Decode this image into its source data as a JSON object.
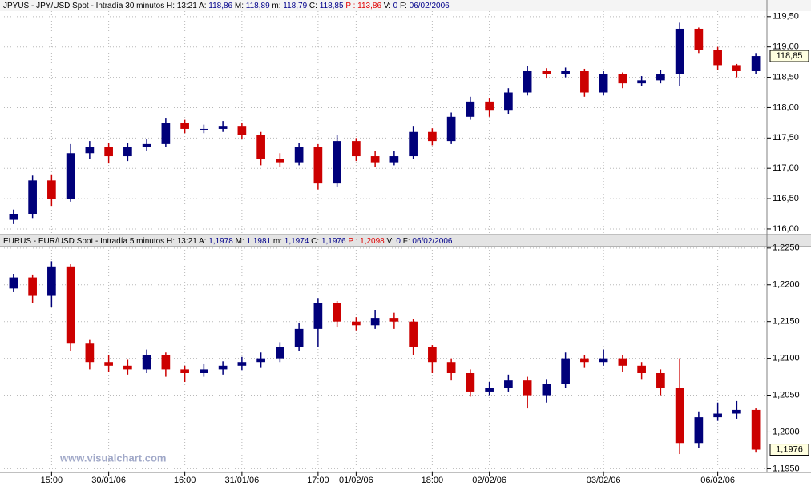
{
  "watermark": "www.visualchart.com",
  "chart_data": [
    {
      "type": "candlestick",
      "header": {
        "text": "JPYUS - JPY/USD Spot - Intradía 30 minutos",
        "fields": [
          {
            "label": "H:",
            "value": "13:21"
          },
          {
            "label": "A:",
            "value": "118,86"
          },
          {
            "label": "M:",
            "value": "118,89"
          },
          {
            "label": "m:",
            "value": "118,79"
          },
          {
            "label": "C:",
            "value": "118,85"
          },
          {
            "label": "P :",
            "value": "113,86",
            "color": "#e00000"
          },
          {
            "label": "V:",
            "value": "0"
          },
          {
            "label": "F:",
            "value": "06/02/2006"
          }
        ]
      },
      "up_color": "#00007a",
      "down_color": "#cc0000",
      "ylim": [
        115.92,
        119.59
      ],
      "yticks": [
        {
          "value": 116,
          "label": "116,00"
        },
        {
          "value": 116.5,
          "label": "116,50"
        },
        {
          "value": 117,
          "label": "117,00"
        },
        {
          "value": 117.5,
          "label": "117,50"
        },
        {
          "value": 118,
          "label": "118,00"
        },
        {
          "value": 118.5,
          "label": "118,50"
        },
        {
          "value": 119,
          "label": "119,00"
        },
        {
          "value": 119.5,
          "label": "119,50"
        }
      ],
      "grid": true,
      "last": {
        "value": 118.85,
        "label": "118,85"
      },
      "open": [
        116.15,
        116.25,
        116.8,
        116.5,
        117.25,
        117.35,
        117.2,
        117.35,
        117.4,
        117.75,
        117.65,
        117.65,
        117.7,
        117.55,
        117.15,
        117.1,
        117.35,
        116.75,
        117.45,
        117.2,
        117.1,
        117.2,
        117.6,
        117.45,
        117.85,
        118.1,
        117.95,
        118.25,
        118.6,
        118.55,
        118.6,
        118.25,
        118.55,
        118.4,
        118.45,
        118.55,
        119.3,
        118.95,
        118.7,
        118.6
      ],
      "high": [
        116.32,
        116.88,
        116.9,
        117.4,
        117.45,
        117.42,
        117.42,
        117.48,
        117.82,
        117.8,
        117.72,
        117.78,
        117.75,
        117.6,
        117.25,
        117.42,
        117.4,
        117.55,
        117.5,
        117.28,
        117.28,
        117.7,
        117.66,
        117.92,
        118.18,
        118.15,
        118.32,
        118.68,
        118.65,
        118.66,
        118.64,
        118.6,
        118.58,
        118.52,
        118.62,
        119.4,
        119.32,
        119.0,
        118.72,
        118.9
      ],
      "low": [
        116.08,
        116.18,
        116.38,
        116.45,
        117.15,
        117.08,
        117.12,
        117.28,
        117.35,
        117.58,
        117.58,
        117.6,
        117.48,
        117.05,
        117.02,
        117.05,
        116.65,
        116.7,
        117.12,
        117.02,
        117.05,
        117.15,
        117.38,
        117.4,
        117.8,
        117.85,
        117.9,
        118.2,
        118.48,
        118.5,
        118.18,
        118.2,
        118.32,
        118.35,
        118.4,
        118.35,
        118.9,
        118.62,
        118.5,
        118.55
      ],
      "close": [
        116.25,
        116.8,
        116.5,
        117.25,
        117.35,
        117.2,
        117.35,
        117.4,
        117.75,
        117.65,
        117.65,
        117.7,
        117.55,
        117.15,
        117.1,
        117.35,
        116.75,
        117.45,
        117.2,
        117.1,
        117.2,
        117.6,
        117.45,
        117.85,
        118.1,
        117.95,
        118.25,
        118.6,
        118.55,
        118.6,
        118.25,
        118.55,
        118.4,
        118.45,
        118.55,
        119.3,
        118.95,
        118.7,
        118.6,
        118.85
      ]
    },
    {
      "type": "candlestick",
      "header": {
        "text": "EURUS - EUR/USD Spot - Intradía 5 minutos",
        "fields": [
          {
            "label": "H:",
            "value": "13:21"
          },
          {
            "label": "A:",
            "value": "1,1978"
          },
          {
            "label": "M:",
            "value": "1,1981"
          },
          {
            "label": "m:",
            "value": "1,1974"
          },
          {
            "label": "C:",
            "value": "1,1976"
          },
          {
            "label": "P :",
            "value": "1,2098",
            "color": "#e00000"
          },
          {
            "label": "V:",
            "value": "0"
          },
          {
            "label": "F:",
            "value": "06/02/2006"
          }
        ]
      },
      "up_color": "#00007a",
      "down_color": "#cc0000",
      "ylim": [
        1.1945,
        1.2252
      ],
      "yticks": [
        {
          "value": 1.195,
          "label": "1,1950"
        },
        {
          "value": 1.2,
          "label": "1,2000"
        },
        {
          "value": 1.205,
          "label": "1,2050"
        },
        {
          "value": 1.21,
          "label": "1,2100"
        },
        {
          "value": 1.215,
          "label": "1,2150"
        },
        {
          "value": 1.22,
          "label": "1,2200"
        },
        {
          "value": 1.225,
          "label": "1,2250"
        }
      ],
      "grid": true,
      "last": {
        "value": 1.1976,
        "label": "1,1976"
      },
      "categories": [
        null,
        null,
        "15:00",
        null,
        null,
        "30/01/06",
        null,
        null,
        null,
        "16:00",
        null,
        null,
        "31/01/06",
        null,
        null,
        null,
        "17:00",
        null,
        "01/02/06",
        null,
        null,
        null,
        "18:00",
        null,
        null,
        "02/02/06",
        null,
        null,
        null,
        null,
        null,
        "03/02/06",
        null,
        null,
        null,
        null,
        null,
        "06/02/06",
        null,
        null
      ],
      "open": [
        1.2195,
        1.221,
        1.2185,
        1.2225,
        1.212,
        1.2095,
        1.209,
        1.2085,
        1.2105,
        1.2085,
        1.208,
        1.2085,
        1.209,
        1.2095,
        1.21,
        1.2115,
        1.214,
        1.2175,
        1.215,
        1.2145,
        1.2155,
        1.215,
        1.2115,
        1.2095,
        1.208,
        1.2055,
        1.206,
        1.207,
        1.205,
        1.2065,
        1.21,
        1.2095,
        1.21,
        1.209,
        1.208,
        1.206,
        1.1985,
        1.202,
        1.2025,
        1.203
      ],
      "high": [
        1.2215,
        1.2214,
        1.2232,
        1.2228,
        1.2125,
        1.2105,
        1.2098,
        1.2112,
        1.2108,
        1.209,
        1.2092,
        1.2096,
        1.2102,
        1.2108,
        1.2122,
        1.2148,
        1.2182,
        1.2178,
        1.2156,
        1.2166,
        1.2162,
        1.2154,
        1.2118,
        1.21,
        1.2085,
        1.2068,
        1.2078,
        1.2075,
        1.2072,
        1.2108,
        1.2105,
        1.2112,
        1.2105,
        1.2095,
        1.2085,
        1.21,
        1.2028,
        1.204,
        1.2042,
        1.2032
      ],
      "low": [
        1.219,
        1.2175,
        1.217,
        1.211,
        1.2085,
        1.2082,
        1.2078,
        1.208,
        1.2075,
        1.2068,
        1.2075,
        1.2078,
        1.2084,
        1.2088,
        1.2095,
        1.211,
        1.2115,
        1.2142,
        1.2138,
        1.214,
        1.214,
        1.2105,
        1.208,
        1.207,
        1.2048,
        1.205,
        1.2055,
        1.2032,
        1.204,
        1.206,
        1.2088,
        1.209,
        1.2082,
        1.2072,
        1.205,
        1.197,
        1.1978,
        1.2015,
        1.2018,
        1.1972
      ],
      "close": [
        1.221,
        1.2185,
        1.2225,
        1.212,
        1.2095,
        1.209,
        1.2085,
        1.2105,
        1.2085,
        1.208,
        1.2085,
        1.209,
        1.2095,
        1.21,
        1.2115,
        1.214,
        1.2175,
        1.215,
        1.2145,
        1.2155,
        1.215,
        1.2115,
        1.2095,
        1.208,
        1.2055,
        1.206,
        1.207,
        1.205,
        1.2065,
        1.21,
        1.2095,
        1.21,
        1.209,
        1.208,
        1.206,
        1.1985,
        1.202,
        1.2025,
        1.203,
        1.1976
      ]
    }
  ]
}
